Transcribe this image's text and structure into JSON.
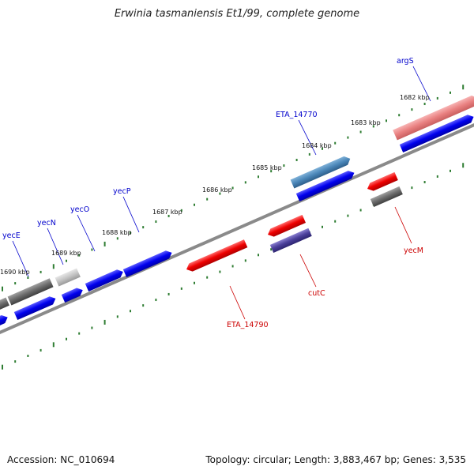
{
  "title": "Erwinia tasmaniensis Et1/99, complete genome",
  "footer": {
    "accession": "Accession: NC_010694",
    "topology": "Topology: circular; Length: 3,883,467 bp; Genes: 3,535"
  },
  "colors": {
    "forward_label": "#0000cc",
    "reverse_label": "#cc0000",
    "backbone": "#8a8a8a",
    "tick": "#2e7d32"
  },
  "ticks": [
    "1682 kbp",
    "1683 kbp",
    "1684 kbp",
    "1685 kbp",
    "1686 kbp",
    "1687 kbp",
    "1688 kbp",
    "1689 kbp",
    "1690 kbp"
  ],
  "gene_labels": [
    {
      "text": "argS",
      "strand": "forward"
    },
    {
      "text": "ETA_14770",
      "strand": "forward"
    },
    {
      "text": "yecP",
      "strand": "forward"
    },
    {
      "text": "yecO",
      "strand": "forward"
    },
    {
      "text": "yecN",
      "strand": "forward"
    },
    {
      "text": "yecE",
      "strand": "forward"
    },
    {
      "text": "yecM",
      "strand": "reverse"
    },
    {
      "text": "cutC",
      "strand": "reverse"
    },
    {
      "text": "ETA_14790",
      "strand": "reverse"
    }
  ]
}
